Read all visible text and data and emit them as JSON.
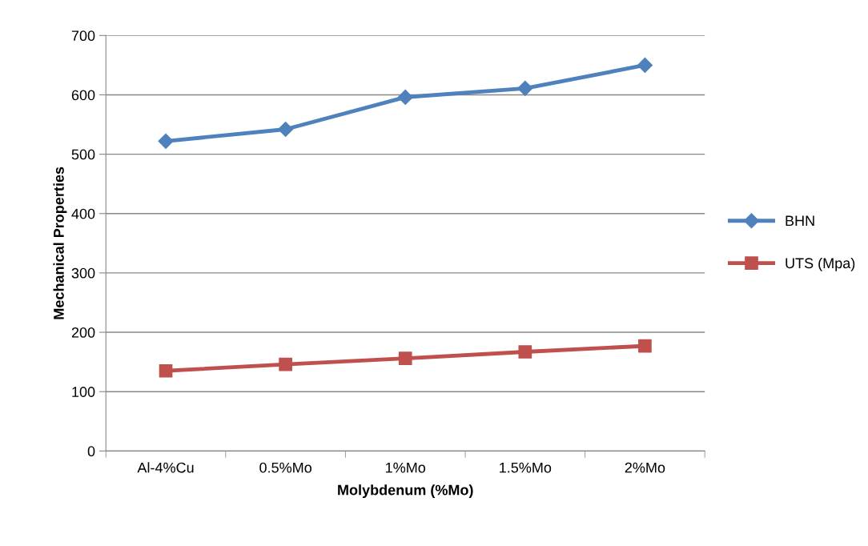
{
  "chart_data": {
    "type": "line",
    "xlabel": "Molybdenum (%Mo)",
    "ylabel": "Mechanical Properties",
    "categories": [
      "Al-4%Cu",
      "0.5%Mo",
      "1%Mo",
      "1.5%Mo",
      "2%Mo"
    ],
    "series": [
      {
        "name": "BHN",
        "color": "#4f81bd",
        "marker": "diamond",
        "values": [
          522,
          542,
          596,
          611,
          650
        ]
      },
      {
        "name": "UTS (Mpa)",
        "color": "#c0504d",
        "marker": "square",
        "values": [
          135,
          146,
          156,
          167,
          177
        ]
      }
    ],
    "ylim": [
      0,
      700
    ],
    "yticks": [
      0,
      100,
      200,
      300,
      400,
      500,
      600,
      700
    ],
    "grid": "y",
    "legend": "right",
    "line_style": "solid"
  }
}
